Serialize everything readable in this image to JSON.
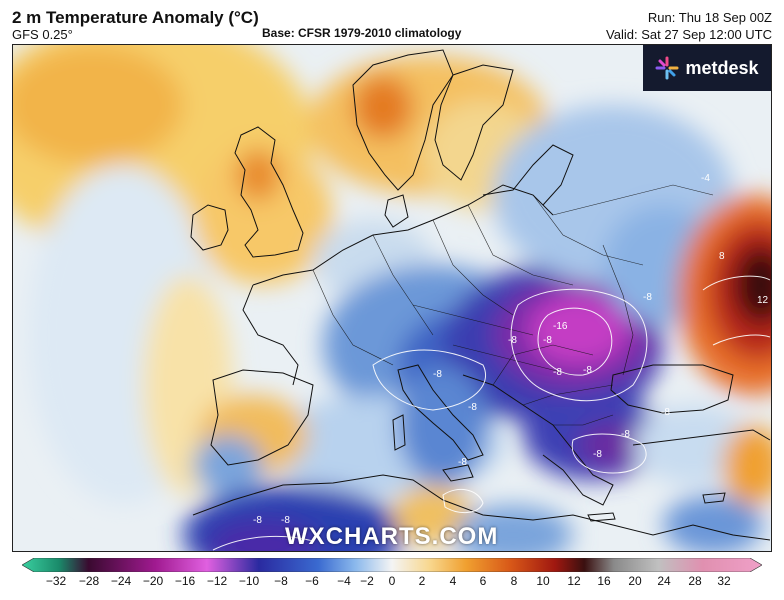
{
  "header": {
    "title": "2 m Temperature Anomaly (°C)",
    "model": "GFS 0.25°",
    "base": "Base: CFSR 1979-2010 climatology",
    "run": "Run: Thu 18 Sep 00Z",
    "valid": "Valid: Sat 27 Sep 12:00 UTC"
  },
  "logo": {
    "text": "metdesk",
    "icon": "metdesk-star-icon"
  },
  "watermark": "WXCHARTS.COM",
  "colorbar": {
    "ticks": [
      "−32",
      "−28",
      "−24",
      "−20",
      "−16",
      "−12",
      "−10",
      "−8",
      "−6",
      "−4",
      "−2",
      "0",
      "2",
      "4",
      "6",
      "8",
      "10",
      "12",
      "16",
      "20",
      "24",
      "28",
      "32"
    ]
  },
  "contour_labels": [
    "-8",
    "-8",
    "-8",
    "-16",
    "-8",
    "-8",
    "-8",
    "-8",
    "-8",
    "-8",
    "-8",
    "-8",
    "-8",
    "-8",
    "8",
    "12",
    "-4"
  ],
  "colors": {
    "warm_orange": "#f0a030",
    "light_warm": "#f8d890",
    "neutral": "#f4f2e8",
    "cold_blue": "#4a7cd0",
    "deep_cold": "#1c2a9a",
    "very_cold": "#b020b0",
    "hot_red": "#c83018",
    "dark_hot": "#3a1010"
  }
}
